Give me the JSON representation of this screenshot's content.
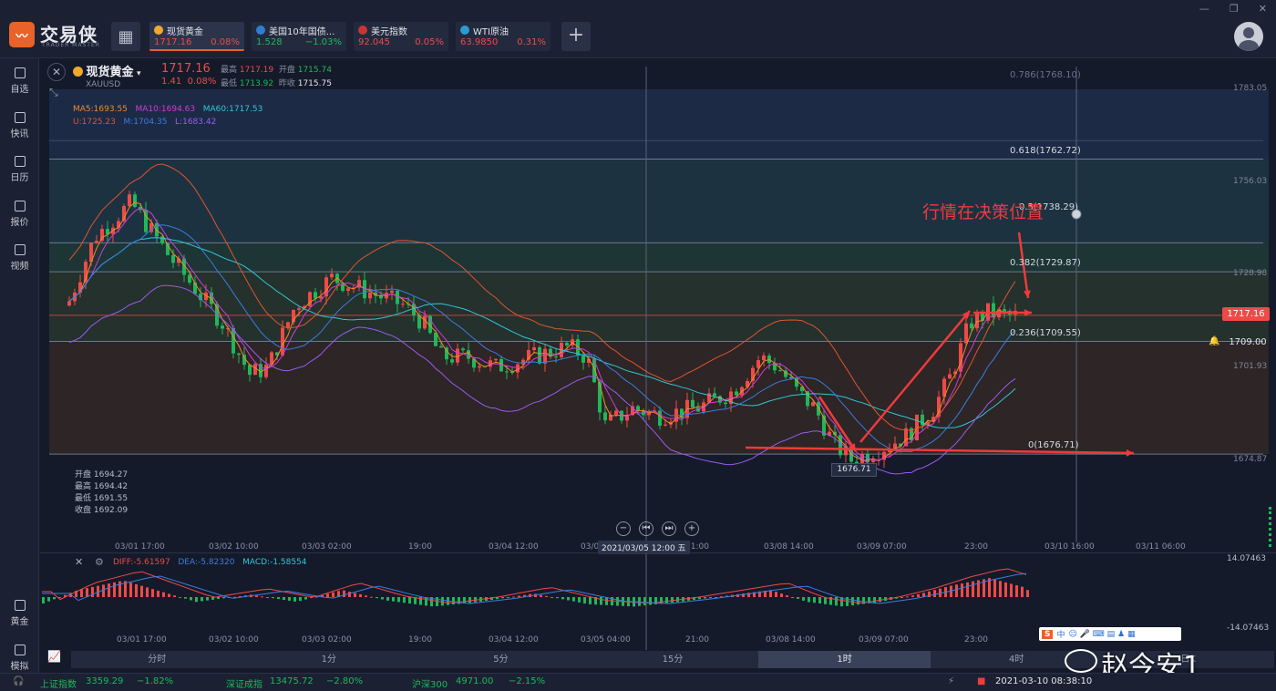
{
  "app": {
    "brand": "交易侠",
    "brand_sub": "TRADER MASTER"
  },
  "quote_tabs": [
    {
      "name": "现货黄金",
      "price": "1717.16",
      "change": "0.08%",
      "color": "#f0a92e",
      "icon": "gold-coin-icon",
      "dir": "up",
      "active": true
    },
    {
      "name": "美国10年国债...",
      "price": "1.528",
      "change": "−1.03%",
      "color": "#2d7fd3",
      "icon": "bar-chart-icon",
      "dir": "down",
      "active": false
    },
    {
      "name": "美元指数",
      "price": "92.045",
      "change": "0.05%",
      "color": "#c33",
      "icon": "us-flag-icon",
      "dir": "up",
      "active": false
    },
    {
      "name": "WTI原油",
      "price": "63.9850",
      "change": "0.31%",
      "color": "#2b9bd0",
      "icon": "oil-drop-icon",
      "dir": "up",
      "active": false
    }
  ],
  "leftnav": [
    {
      "label": "自选",
      "icon": "star-list-icon"
    },
    {
      "label": "快讯",
      "icon": "news-icon"
    },
    {
      "label": "日历",
      "icon": "calendar-icon"
    },
    {
      "label": "报价",
      "icon": "trend-icon"
    },
    {
      "label": "视频",
      "icon": "play-icon"
    },
    {
      "label": "黄金",
      "icon": "gold-icon"
    },
    {
      "label": "模拟",
      "icon": "wallet-icon"
    }
  ],
  "symbol": {
    "name": "现货黄金",
    "code": "XAUUSD",
    "price": "1717.16",
    "change": "1.41",
    "change_pct": "0.08%",
    "high_label": "最高",
    "high": "1717.19",
    "open_label": "开盘",
    "open": "1715.74",
    "low_label": "最低",
    "low": "1713.92",
    "prev_label": "昨收",
    "prev": "1715.75"
  },
  "indicators": {
    "ma5": "MA5:1693.55",
    "ma10": "MA10:1694.63",
    "ma60": "MA60:1717.53",
    "boll_u": "U:1725.23",
    "boll_m": "M:1704.35",
    "boll_l": "L:1683.42"
  },
  "ohlc_panel": [
    "开盘 1694.27",
    "最高 1694.42",
    "最低 1691.55",
    "收盘 1692.09"
  ],
  "fib_levels": [
    {
      "label": "0.786(1768.10)",
      "price": 1768.1
    },
    {
      "label": "0.618(1762.72)",
      "price": 1762.72
    },
    {
      "label": "0.5(1738.29)",
      "price": 1738.29
    },
    {
      "label": "0.382(1729.87)",
      "price": 1729.87
    },
    {
      "label": "0.236(1709.55)",
      "price": 1709.55
    },
    {
      "label": "0(1676.71)",
      "price": 1676.71
    }
  ],
  "y_ticks": [
    "1783.05",
    "1756.03",
    "1728.98",
    "1701.93",
    "1674.87"
  ],
  "price_tag": "1717.16",
  "alert_tag": "1709.00",
  "low_tag": "1676.71",
  "annotation": "行情在决策位置",
  "x_ticks": [
    "03/01 17:00",
    "03/02 10:00",
    "03/03 02:00",
    "19:00",
    "03/04 12:00",
    "03/05",
    "21:00",
    "03/08 14:00",
    "03/09 07:00",
    "23:00",
    "03/10 16:00",
    "03/11 06:00"
  ],
  "cursor_time": "2021/03/05 12:00 五",
  "macd": {
    "diff": "DIFF:-5.61597",
    "dea": "DEA:-5.82320",
    "macd": "MACD:-1.58554",
    "ytop": "14.07463",
    "ybot": "-14.07463"
  },
  "macd_x_ticks": [
    "03/01 17:00",
    "03/02 10:00",
    "03/03 02:00",
    "19:00",
    "03/04 12:00",
    "03/05 04:00",
    "21:00",
    "03/08 14:00",
    "03/09 07:00",
    "23:00"
  ],
  "timeframes": [
    "分时",
    "1分",
    "5分",
    "15分",
    "1时",
    "4时",
    "日K"
  ],
  "active_timeframe": "1时",
  "status": {
    "idx1_name": "上证指数",
    "idx1_val": "3359.29",
    "idx1_chg": "−1.82%",
    "idx2_name": "深证成指",
    "idx2_val": "13475.72",
    "idx2_chg": "−2.80%",
    "idx3_name": "沪深300",
    "idx3_val": "4971.00",
    "idx3_chg": "−2.15%",
    "datetime": "2021-03-10 08:38:10"
  },
  "watermark": "赵今安1",
  "sogou": "中"
}
